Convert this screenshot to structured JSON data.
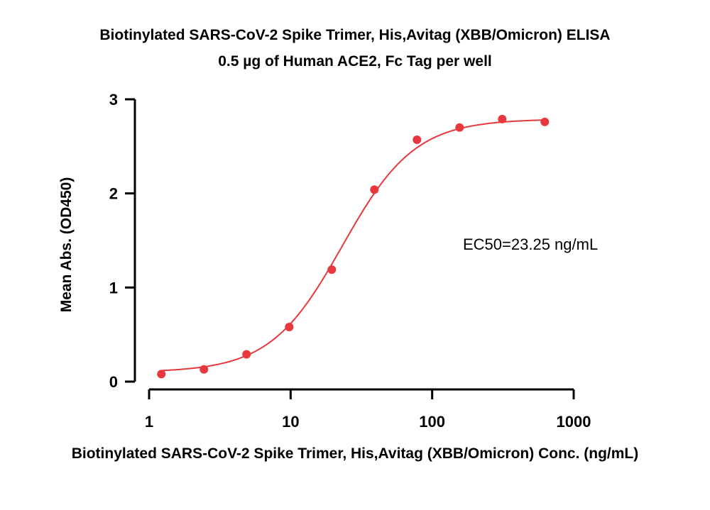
{
  "chart_data": {
    "type": "scatter",
    "title": "Biotinylated SARS-CoV-2 Spike Trimer, His,Avitag (XBB/Omicron) ELISA",
    "subtitle": "0.5 µg of Human ACE2, Fc Tag per well",
    "xlabel": "Biotinylated SARS-CoV-2 Spike Trimer, His,Avitag (XBB/Omicron) Conc. (ng/mL)",
    "ylabel": "Mean Abs. (OD450)",
    "x_scale": "log",
    "xlim": [
      1,
      1000
    ],
    "ylim": [
      0,
      3
    ],
    "x_ticks": [
      1,
      10,
      100,
      1000
    ],
    "x_tick_labels": [
      "1",
      "10",
      "100",
      "1000"
    ],
    "y_ticks": [
      0,
      1,
      2,
      3
    ],
    "y_tick_labels": [
      "0",
      "1",
      "2",
      "3"
    ],
    "grid": false,
    "annotation": "EC50=23.25 ng/mL",
    "color": "#e8383d",
    "series": [
      {
        "x": [
          1.22,
          2.44,
          4.88,
          9.77,
          19.53,
          39.06,
          78.13,
          156.25,
          312.5,
          625
        ],
        "y": [
          0.08,
          0.13,
          0.29,
          0.58,
          1.19,
          2.04,
          2.57,
          2.7,
          2.79,
          2.76
        ]
      }
    ],
    "fit": {
      "model": "4PL",
      "bottom": 0.1,
      "top": 2.79,
      "ec50": 23.25,
      "hill": 1.7
    }
  }
}
